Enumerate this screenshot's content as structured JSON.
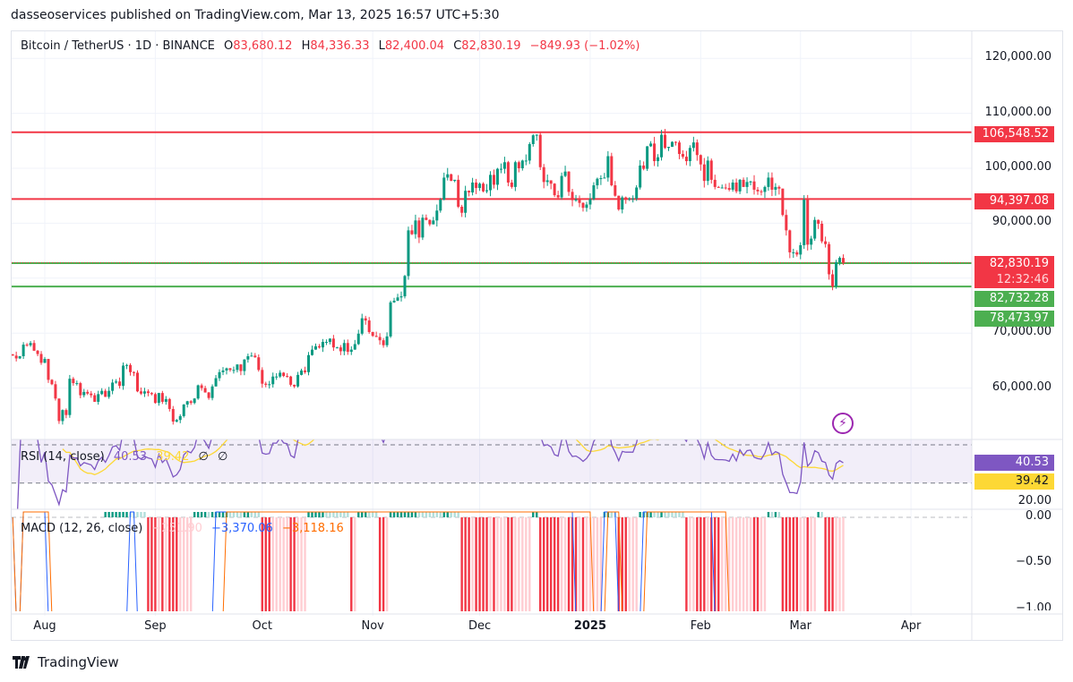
{
  "publisher": "dasseoservices published on TradingView.com, Mar 13, 2025 16:57 UTC+5:30",
  "symbol": {
    "title": "Bitcoin / TetherUS · 1D · BINANCE",
    "open_label": "O",
    "open": "83,680.12",
    "high_label": "H",
    "high": "84,336.33",
    "low_label": "L",
    "low": "82,400.04",
    "close_label": "C",
    "close": "82,830.19",
    "change": "−849.93 (−1.02%)"
  },
  "price_axis": [
    "120,000.00",
    "110,000.00",
    "100,000.00",
    "90,000.00",
    "70,000.00",
    "60,000.00"
  ],
  "price_axis_values": [
    120000,
    110000,
    100000,
    90000,
    70000,
    60000
  ],
  "price_tags": {
    "resistance_1": "106,548.52",
    "resistance_2": "94,397.08",
    "last_price": "82,830.19",
    "countdown": "12:32:46",
    "support_1": "82,732.28",
    "support_2": "78,473.97"
  },
  "horizontal_lines": [
    {
      "price": 106548.52,
      "color": "#f23645"
    },
    {
      "price": 94397.08,
      "color": "#f23645"
    },
    {
      "price": 82732.28,
      "color": "#4caf50"
    },
    {
      "price": 78473.97,
      "color": "#4caf50"
    }
  ],
  "rsi": {
    "title": "RSI (14, close)",
    "value": "40.53",
    "ma_value": "39.42",
    "extra1": "∅",
    "extra2": "∅",
    "axis": "20.00",
    "color": "#7e57c2",
    "ma_color": "#fdd835"
  },
  "macd": {
    "title": "MACD (12, 26, close)",
    "histogram": "−251.90",
    "macd": "−3,370.06",
    "signal": "−3,118.16",
    "axis": [
      "0.00",
      "−0.50",
      "−1.00"
    ],
    "macd_color": "#2962ff",
    "signal_color": "#ff6d00"
  },
  "time_axis": [
    {
      "label": "Aug",
      "date": "2024-08-01"
    },
    {
      "label": "Sep",
      "date": "2024-09-01"
    },
    {
      "label": "Oct",
      "date": "2024-10-01"
    },
    {
      "label": "Nov",
      "date": "2024-11-01"
    },
    {
      "label": "Dec",
      "date": "2024-12-01"
    },
    {
      "label": "2025",
      "date": "2025-01-01",
      "bold": true
    },
    {
      "label": "Feb",
      "date": "2025-02-01"
    },
    {
      "label": "Mar",
      "date": "2025-03-01"
    },
    {
      "label": "Apr",
      "date": "2025-04-01"
    }
  ],
  "footer": {
    "brand": "TradingView"
  },
  "colors": {
    "up": "#089981",
    "down": "#f23645",
    "up_light": "#b2dfdb",
    "down_light": "#ffcdd2",
    "alert": "#9c27b0"
  },
  "icons": {
    "alert": "lightning-alert-icon",
    "logo": "tradingview-logo-icon"
  },
  "chart_data": {
    "type": "candlestick",
    "title": "Bitcoin / TetherUS · 1D · BINANCE",
    "interval": "1D",
    "ylim": [
      51000,
      125000
    ],
    "grid": true,
    "last_candle": {
      "date": "2025-03-13",
      "open": 83680.12,
      "high": 84336.33,
      "low": 82400.04,
      "close": 82830.19
    },
    "closes_by_month": [
      {
        "month": "2024-07",
        "days": "23-31",
        "close": [
          65900,
          65400,
          65800,
          67900,
          67800,
          68200,
          66800,
          66200,
          64600
        ]
      },
      {
        "month": "2024-08",
        "days": "1-31",
        "close": [
          65300,
          61500,
          60700,
          58100,
          54000,
          56000,
          55100,
          61700,
          60900,
          60900,
          58700,
          59300,
          59000,
          58700,
          57500,
          58900,
          59500,
          58400,
          59500,
          61000,
          61200,
          60400,
          64100,
          64200,
          62900,
          62800,
          59400,
          59000,
          59400,
          59100,
          58900
        ]
      },
      {
        "month": "2024-09",
        "days": "1-30",
        "close": [
          57300,
          59100,
          57500,
          58000,
          56200,
          53900,
          54200,
          54900,
          57000,
          57600,
          57300,
          58100,
          60500,
          60000,
          59200,
          58200,
          60300,
          61800,
          62900,
          63200,
          63600,
          63300,
          63300,
          64300,
          63100,
          65200,
          65800,
          65900,
          65600,
          63300
        ]
      },
      {
        "month": "2024-10",
        "days": "1-31",
        "close": [
          60800,
          60600,
          60700,
          62100,
          62100,
          62800,
          62200,
          62100,
          60600,
          60300,
          62400,
          63200,
          62900,
          66000,
          67000,
          67600,
          67400,
          68400,
          68400,
          69000,
          67400,
          67400,
          66700,
          68200,
          66600,
          67000,
          68000,
          69900,
          72700,
          72300,
          70200
        ]
      },
      {
        "month": "2024-11",
        "days": "1-30",
        "close": [
          69500,
          69300,
          68700,
          67800,
          69400,
          75600,
          75900,
          76500,
          76700,
          80400,
          88700,
          88000,
          90500,
          87400,
          91000,
          90600,
          89800,
          90500,
          92300,
          94300,
          98300,
          98900,
          97700,
          97900,
          93000,
          91900,
          95900,
          95600,
          97400,
          96400
        ]
      },
      {
        "month": "2024-12",
        "days": "1-31",
        "close": [
          97200,
          95800,
          96000,
          98800,
          97000,
          99900,
          99900,
          101100,
          97400,
          96600,
          101100,
          100000,
          101400,
          101400,
          104400,
          106000,
          106100,
          100200,
          97500,
          97800,
          97200,
          95100,
          94700,
          98600,
          99400,
          95700,
          94200,
          94300,
          93700,
          92800,
          93400
        ]
      },
      {
        "month": "2025-01",
        "days": "1-31",
        "close": [
          94400,
          96900,
          98100,
          98200,
          98300,
          102200,
          96900,
          95000,
          92500,
          94700,
          94500,
          94500,
          94500,
          96500,
          100500,
          99900,
          104000,
          104500,
          101300,
          102000,
          106100,
          103700,
          103900,
          104800,
          104700,
          102600,
          102100,
          101300,
          103700,
          104700,
          102400
        ]
      },
      {
        "month": "2025-02",
        "days": "1-28",
        "close": [
          100700,
          97700,
          101400,
          97900,
          96600,
          96500,
          96500,
          96400,
          96100,
          97400,
          95800,
          97900,
          96600,
          97500,
          97600,
          96100,
          95800,
          95700,
          96600,
          98300,
          96100,
          96600,
          96300,
          91500,
          88700,
          84700,
          84700,
          84300
        ]
      },
      {
        "month": "2025-03",
        "days": "1-13",
        "close": [
          86000,
          94300,
          86100,
          87200,
          90600,
          89900,
          86700,
          86200,
          80700,
          78500,
          82900,
          83700,
          82830.19
        ]
      }
    ]
  }
}
